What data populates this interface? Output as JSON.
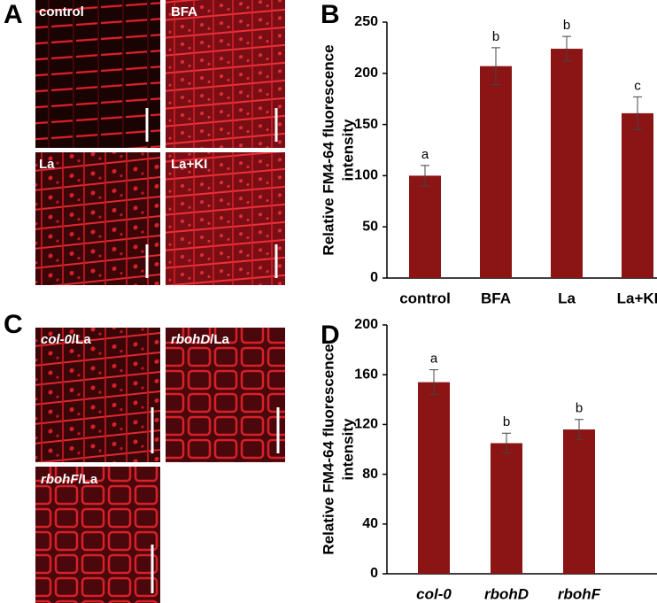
{
  "panel_labels": [
    "A",
    "B",
    "C",
    "D"
  ],
  "image_labels": {
    "control": "control",
    "bfa": "BFA",
    "la": "La",
    "la_ki": "La+KI",
    "col0": {
      "genotype": "col-0",
      "treatment": "/La"
    },
    "rbohd": {
      "genotype": "rbohD",
      "treatment": "/La"
    },
    "rbohf": {
      "genotype": "rbohF",
      "treatment": "/La"
    }
  },
  "chart_data": [
    {
      "type": "bar",
      "ylabel": [
        "Relative FM4-64 fluorescence",
        "intensity"
      ],
      "categories": [
        "control",
        "BFA",
        "La",
        "La+KI"
      ],
      "italic_categories": false,
      "series": [
        {
          "color": "#8b1414",
          "values": [
            100,
            207,
            224,
            161
          ],
          "errors": [
            10,
            18,
            12,
            16
          ],
          "significance": [
            "a",
            "b",
            "b",
            "c"
          ]
        }
      ],
      "ylim": [
        0,
        250
      ],
      "yticks": [
        0,
        50,
        100,
        150,
        200,
        250
      ]
    },
    {
      "type": "bar",
      "ylabel": [
        "Relative FM4-64 fluorescence",
        "intensity"
      ],
      "categories": [
        "col-0",
        "rbohD",
        "rbohF"
      ],
      "italic_categories": true,
      "series": [
        {
          "color": "#8b1414",
          "values": [
            154,
            105,
            116
          ],
          "errors": [
            10,
            8,
            8
          ],
          "significance": [
            "a",
            "b",
            "b"
          ]
        }
      ],
      "ylim": [
        0,
        200
      ],
      "yticks": [
        0,
        40,
        80,
        120,
        160,
        200
      ]
    }
  ]
}
